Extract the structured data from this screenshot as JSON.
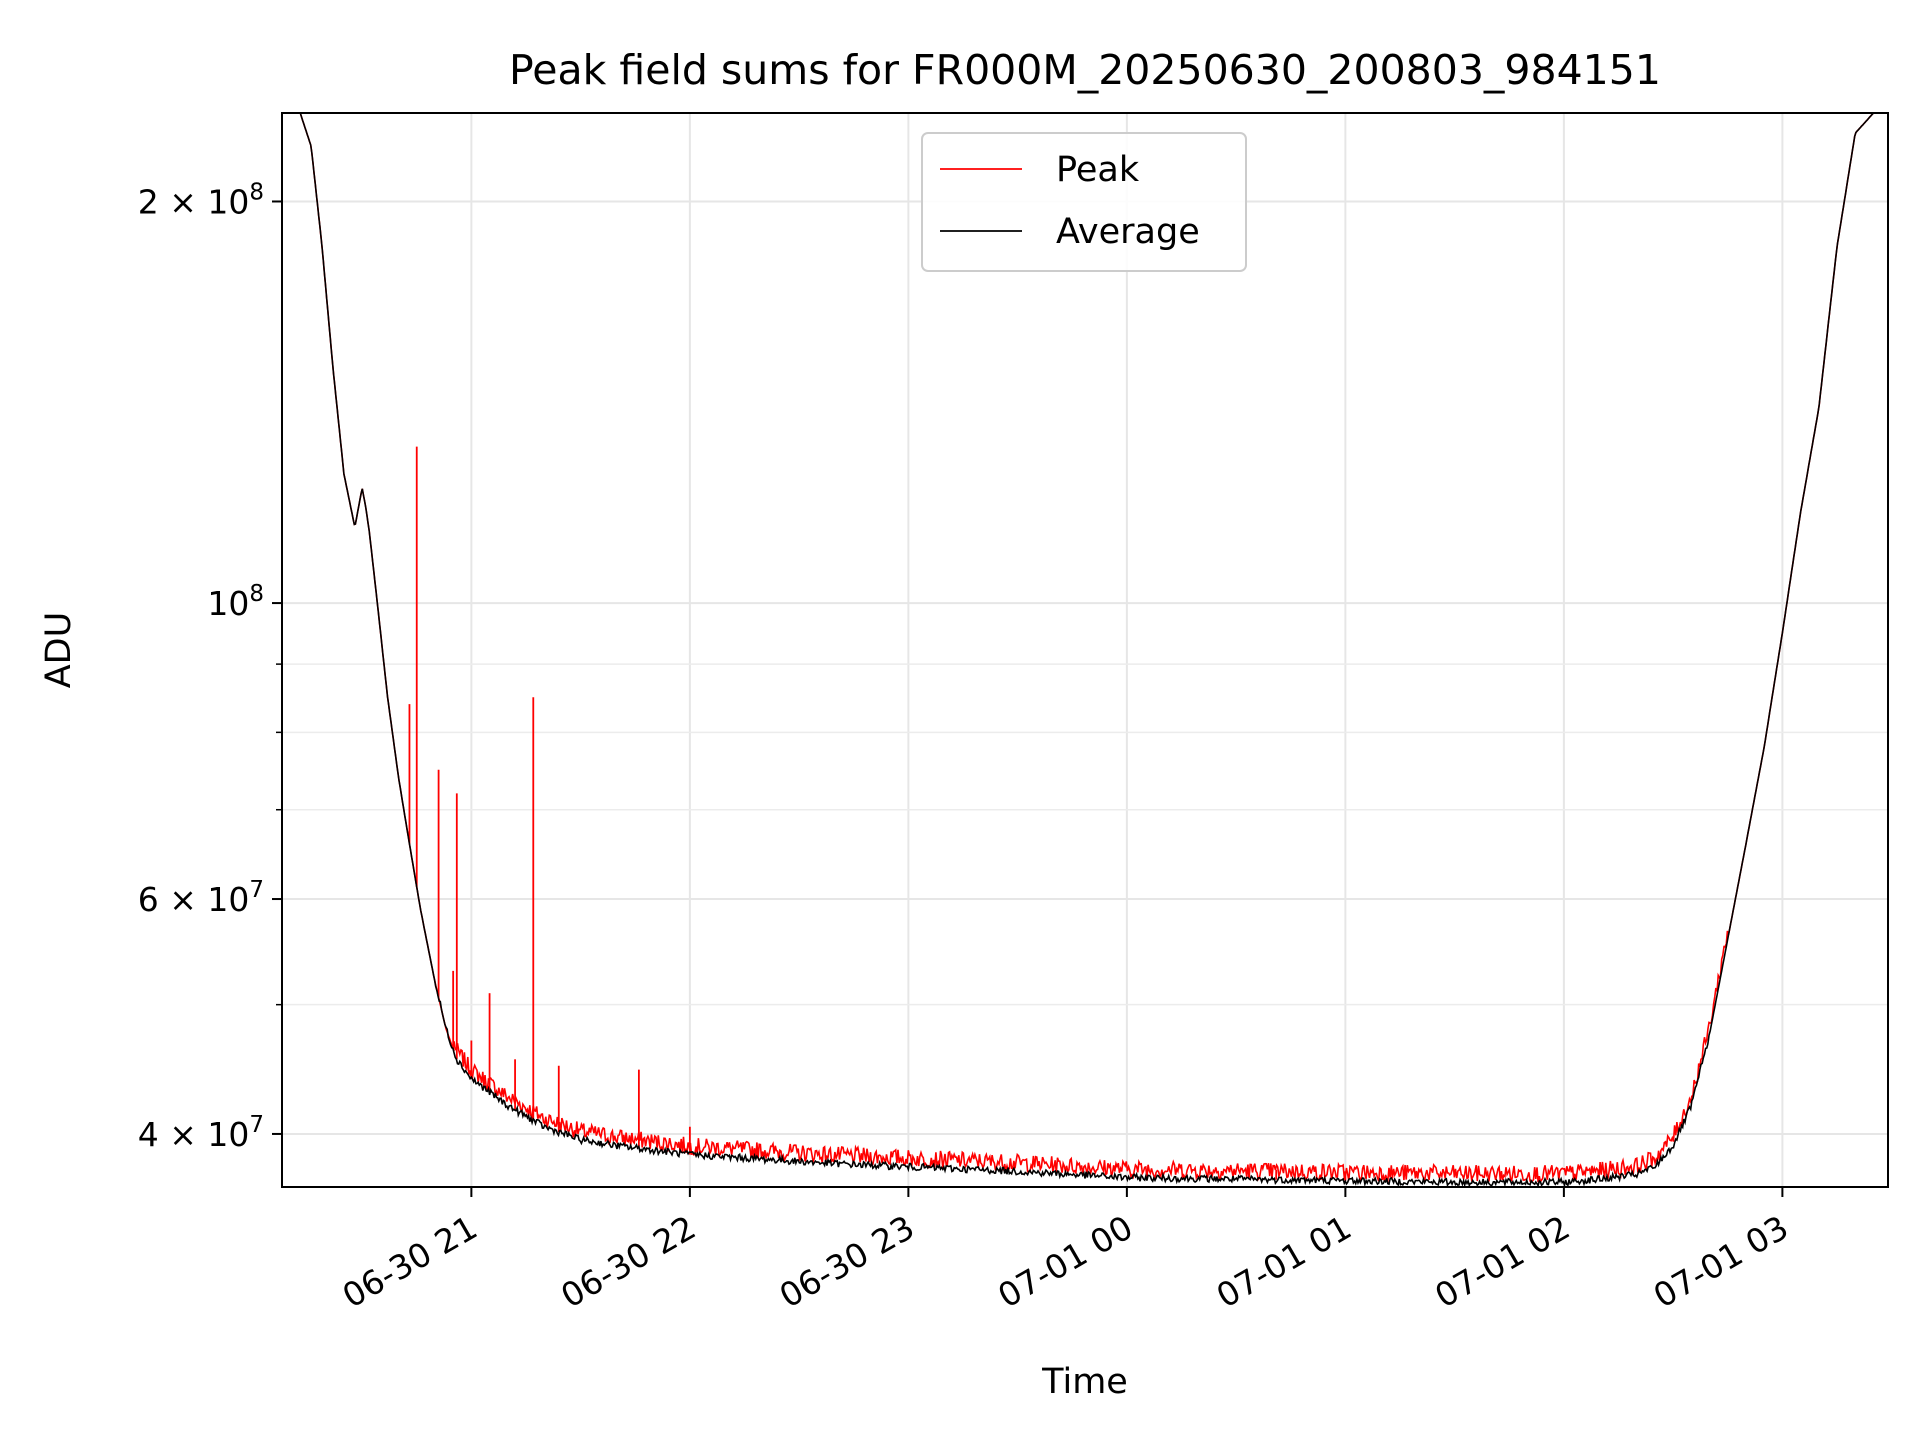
{
  "chart_data": {
    "type": "line",
    "title": "Peak field sums for FR000M_20250630_200803_984151",
    "xlabel": "Time",
    "ylabel": "ADU",
    "y_scale": "log",
    "ylim": [
      36500000,
      233000000
    ],
    "xlim": [
      "2025-06-30 20:08",
      "2025-07-01 03:29"
    ],
    "grid": true,
    "legend_position": "top-center",
    "x_ticks": [
      {
        "value": "2025-06-30 21:00",
        "label": "06-30 21"
      },
      {
        "value": "2025-06-30 22:00",
        "label": "06-30 22"
      },
      {
        "value": "2025-06-30 23:00",
        "label": "06-30 23"
      },
      {
        "value": "2025-07-01 00:00",
        "label": "07-01 00"
      },
      {
        "value": "2025-07-01 01:00",
        "label": "07-01 01"
      },
      {
        "value": "2025-07-01 02:00",
        "label": "07-01 02"
      },
      {
        "value": "2025-07-01 03:00",
        "label": "07-01 03"
      }
    ],
    "y_ticks": [
      {
        "value": 40000000,
        "base": "4 × 10",
        "exp": "7"
      },
      {
        "value": 60000000,
        "base": "6 × 10",
        "exp": "7"
      },
      {
        "value": 100000000,
        "base": "10",
        "exp": "8"
      },
      {
        "value": 200000000,
        "base": "2 × 10",
        "exp": "8"
      }
    ],
    "y_minor_ticks": [
      50000000,
      70000000,
      80000000,
      90000000
    ],
    "series": [
      {
        "name": "Average",
        "color": "#000000",
        "x": [
          "2025-06-30 20:08",
          "2025-06-30 20:13",
          "2025-06-30 20:16",
          "2025-06-30 20:19",
          "2025-06-30 20:22",
          "2025-06-30 20:25",
          "2025-06-30 20:28",
          "2025-06-30 20:30",
          "2025-06-30 20:31",
          "2025-06-30 20:32",
          "2025-06-30 20:34",
          "2025-06-30 20:37",
          "2025-06-30 20:40",
          "2025-06-30 20:43",
          "2025-06-30 20:46",
          "2025-06-30 20:50",
          "2025-06-30 20:53",
          "2025-06-30 20:56",
          "2025-06-30 21:00",
          "2025-06-30 21:10",
          "2025-06-30 21:20",
          "2025-06-30 21:30",
          "2025-06-30 21:40",
          "2025-06-30 21:50",
          "2025-06-30 22:00",
          "2025-06-30 22:20",
          "2025-06-30 22:40",
          "2025-06-30 23:00",
          "2025-06-30 23:30",
          "2025-07-01 00:00",
          "2025-07-01 00:30",
          "2025-07-01 01:00",
          "2025-07-01 01:30",
          "2025-07-01 02:00",
          "2025-07-01 02:10",
          "2025-07-01 02:20",
          "2025-07-01 02:25",
          "2025-07-01 02:30",
          "2025-07-01 02:35",
          "2025-07-01 02:40",
          "2025-07-01 02:45",
          "2025-07-01 02:50",
          "2025-07-01 02:55",
          "2025-07-01 03:00",
          "2025-07-01 03:05",
          "2025-07-01 03:10",
          "2025-07-01 03:15",
          "2025-07-01 03:20",
          "2025-07-01 03:25",
          "2025-07-01 03:29"
        ],
        "y": [
          233000000,
          233000000,
          220000000,
          185000000,
          150000000,
          125000000,
          114000000,
          122000000,
          118000000,
          113000000,
          101000000,
          85000000,
          74000000,
          66000000,
          59000000,
          52000000,
          48000000,
          45500000,
          44000000,
          42000000,
          40500000,
          39600000,
          39200000,
          38900000,
          38600000,
          38300000,
          38000000,
          37800000,
          37500000,
          37100000,
          37000000,
          36900000,
          36800000,
          36800000,
          37000000,
          37300000,
          37800000,
          39200000,
          42000000,
          47500000,
          56000000,
          66000000,
          78000000,
          95000000,
          117000000,
          140000000,
          185000000,
          225000000,
          233000000,
          233000000
        ]
      },
      {
        "name": "Peak",
        "color": "#ff0000",
        "spikes": [
          {
            "x": "2025-06-30 20:43",
            "y": 84000000
          },
          {
            "x": "2025-06-30 20:45",
            "y": 131000000
          },
          {
            "x": "2025-06-30 20:51",
            "y": 75000000
          },
          {
            "x": "2025-06-30 20:55",
            "y": 53000000
          },
          {
            "x": "2025-06-30 20:56",
            "y": 72000000
          },
          {
            "x": "2025-06-30 21:00",
            "y": 47000000
          },
          {
            "x": "2025-06-30 21:05",
            "y": 51000000
          },
          {
            "x": "2025-06-30 21:12",
            "y": 45500000
          },
          {
            "x": "2025-06-30 21:17",
            "y": 85000000
          },
          {
            "x": "2025-06-30 21:24",
            "y": 45000000
          },
          {
            "x": "2025-06-30 21:46",
            "y": 44700000
          },
          {
            "x": "2025-06-30 22:00",
            "y": 40500000
          },
          {
            "x": "2025-06-30 23:48",
            "y": 37700000
          },
          {
            "x": "2025-07-01 00:41",
            "y": 37600000
          },
          {
            "x": "2025-07-01 01:00",
            "y": 37500000
          }
        ]
      }
    ]
  }
}
